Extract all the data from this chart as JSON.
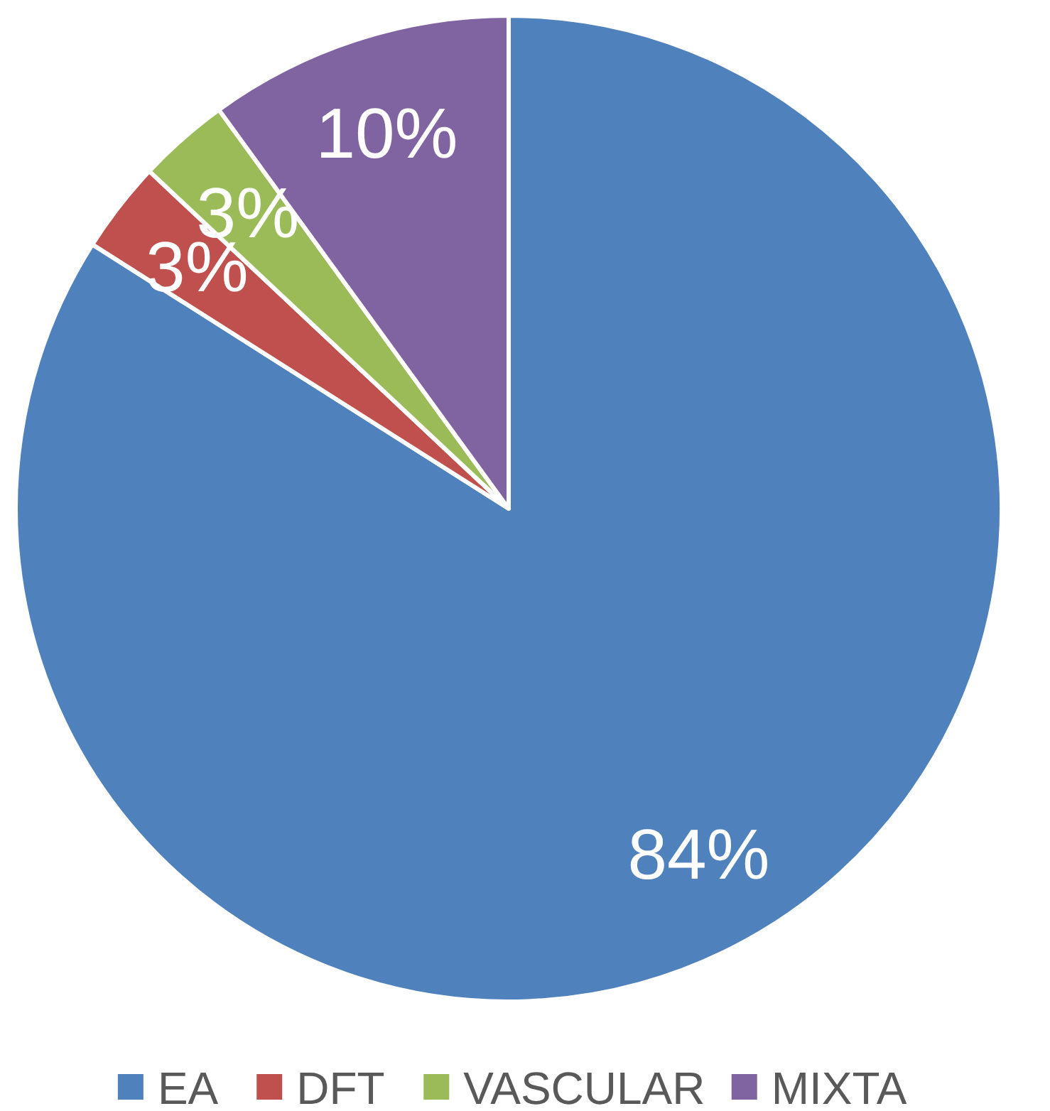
{
  "chart_data": {
    "type": "pie",
    "categories": [
      "EA",
      "DFT",
      "VASCULAR",
      "MIXTA"
    ],
    "values": [
      84,
      3,
      3,
      10
    ],
    "colors": [
      "#4f81bd",
      "#c0504d",
      "#9bbb59",
      "#8064a2"
    ],
    "value_labels": [
      "84%",
      "3%",
      "3%",
      "10%"
    ],
    "legend": "bottom"
  }
}
